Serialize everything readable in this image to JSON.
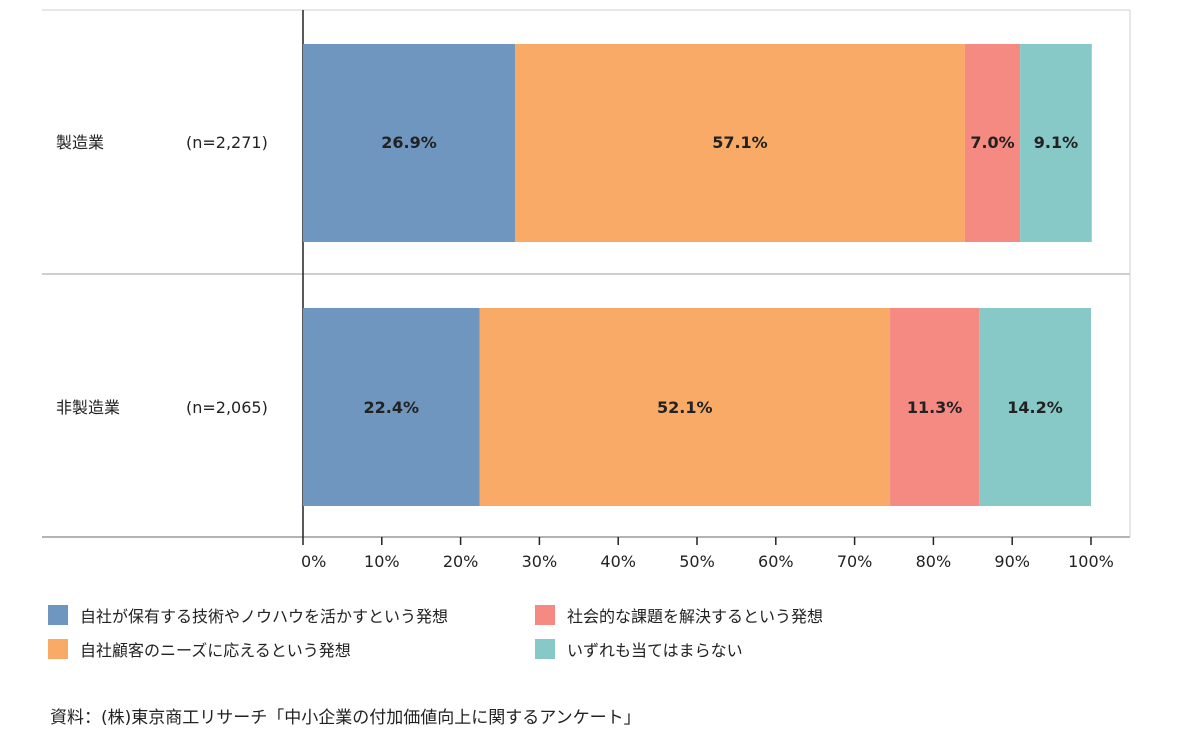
{
  "chart_data": {
    "type": "bar",
    "orientation": "horizontal",
    "stacked": true,
    "categories": [
      "製造業",
      "非製造業"
    ],
    "sample_sizes": [
      "(n=2,271)",
      "(n=2,065)"
    ],
    "series": [
      {
        "name": "自社が保有する技術やノウハウを活かすという発想",
        "values": [
          26.9,
          22.4
        ],
        "labels": [
          "26.9%",
          "22.4%"
        ],
        "color": "#6f96bf"
      },
      {
        "name": "自社顧客のニーズに応えるという発想",
        "values": [
          57.1,
          52.1
        ],
        "labels": [
          "57.1%",
          "52.1%"
        ],
        "color": "#f8aa66"
      },
      {
        "name": "社会的な課題を解決するという発想",
        "values": [
          7.0,
          11.3
        ],
        "labels": [
          "7.0%",
          "11.3%"
        ],
        "color": "#f48a82"
      },
      {
        "name": "いずれも当てはまらない",
        "values": [
          9.1,
          14.2
        ],
        "labels": [
          "9.1%",
          "14.2%"
        ],
        "color": "#86c9c6"
      }
    ],
    "xlim": [
      0,
      100
    ],
    "ticks": [
      "0%",
      "10%",
      "20%",
      "30%",
      "40%",
      "50%",
      "60%",
      "70%",
      "80%",
      "90%",
      "100%"
    ],
    "grid": false,
    "legend_placement": "bottom",
    "source": "資料：(株)東京商工リサーチ「中小企業の付加価値向上に関するアンケート」"
  }
}
